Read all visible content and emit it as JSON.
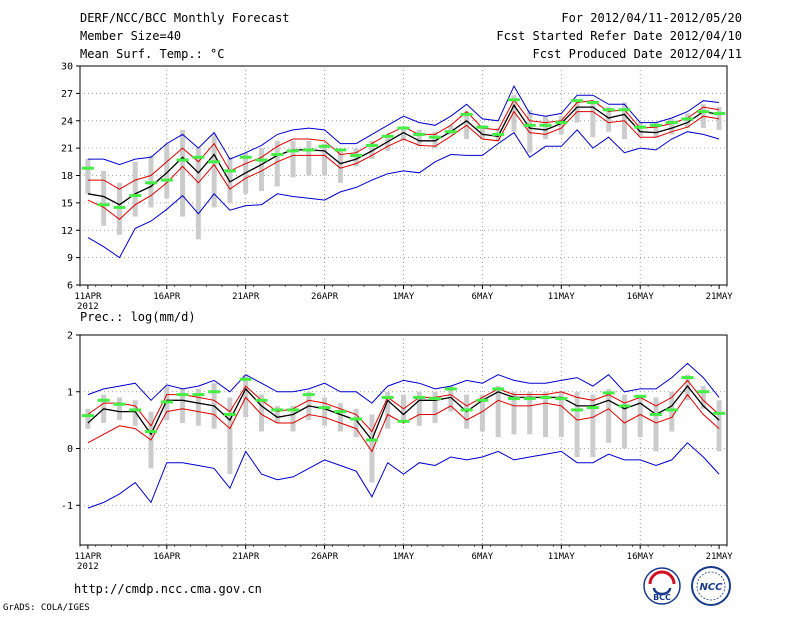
{
  "header": {
    "title": "DERF/NCC/BCC Monthly Forecast",
    "member_size": "Member Size=40",
    "variable1": "Mean Surf. Temp.: °C",
    "period": "For 2012/04/11-2012/05/20",
    "started": "Fcst Started Refer Date 2012/04/10",
    "produced": "Fcst Produced Date 2012/04/11"
  },
  "footer": {
    "url": "http://cmdp.ncc.cma.gov.cn",
    "grads": "GrADS: COLA/IGES",
    "logo_bcc": "BCC",
    "logo_ncc": "NCC"
  },
  "colors": {
    "median": "#000000",
    "upper": "#0000cc",
    "lower": "#0000cc",
    "ensemble_upper": "#dd0000",
    "ensemble_lower": "#dd0000",
    "climatology": "#44ee44",
    "range_bar": "#cccccc",
    "grid": "#888888"
  },
  "chart_data": [
    {
      "type": "line",
      "title": "Mean Surf. Temp.: °C",
      "x_ticks": [
        "11APR",
        "16APR",
        "21APR",
        "26APR",
        "1MAY",
        "6MAY",
        "11MAY",
        "16MAY",
        "21MAY"
      ],
      "x_year_label": "2012",
      "x_days": 41,
      "ylim": [
        6,
        30
      ],
      "y_ticks": [
        "6",
        "9",
        "12",
        "15",
        "18",
        "21",
        "24",
        "27",
        "30"
      ],
      "grid": true,
      "series": [
        {
          "name": "max",
          "color": "upper",
          "values": [
            19.8,
            19.8,
            19.2,
            19.8,
            20.0,
            21.5,
            22.5,
            21.0,
            22.7,
            19.8,
            20.5,
            21.3,
            22.5,
            23.0,
            23.2,
            23.0,
            21.5,
            21.5,
            22.5,
            23.5,
            24.5,
            23.8,
            23.5,
            24.5,
            25.8,
            24.2,
            24.0,
            27.8,
            24.8,
            24.5,
            24.8,
            26.8,
            26.8,
            25.8,
            25.8,
            23.8,
            23.8,
            24.3,
            25.0,
            26.2,
            26.0
          ]
        },
        {
          "name": "upper",
          "color": "ensemble_upper",
          "values": [
            17.5,
            17.5,
            16.5,
            17.5,
            18.0,
            19.5,
            21.0,
            19.5,
            21.5,
            18.5,
            19.3,
            20.0,
            21.2,
            22.0,
            22.0,
            21.8,
            20.3,
            20.5,
            21.5,
            22.5,
            23.3,
            22.5,
            22.5,
            23.5,
            25.0,
            23.2,
            23.0,
            26.3,
            24.0,
            23.8,
            24.0,
            26.0,
            26.2,
            25.0,
            25.2,
            23.2,
            23.3,
            23.7,
            24.3,
            25.5,
            25.2
          ]
        },
        {
          "name": "median",
          "color": "median",
          "values": [
            16.0,
            15.7,
            14.8,
            16.0,
            16.8,
            18.3,
            20.0,
            18.3,
            20.3,
            17.3,
            18.3,
            19.2,
            20.2,
            20.8,
            20.8,
            20.7,
            19.3,
            19.8,
            20.7,
            21.7,
            22.7,
            21.8,
            21.8,
            22.8,
            24.0,
            22.5,
            22.3,
            25.7,
            23.2,
            23.0,
            23.7,
            25.5,
            25.5,
            24.3,
            24.7,
            22.8,
            22.7,
            23.2,
            23.8,
            25.0,
            24.7
          ]
        },
        {
          "name": "lower",
          "color": "ensemble_lower",
          "values": [
            15.3,
            14.5,
            13.2,
            14.8,
            15.8,
            17.2,
            19.0,
            17.2,
            19.2,
            16.5,
            17.7,
            18.5,
            19.5,
            20.2,
            20.2,
            20.2,
            18.8,
            19.3,
            20.2,
            21.2,
            22.0,
            21.3,
            21.2,
            22.3,
            23.5,
            22.0,
            21.8,
            25.0,
            22.7,
            22.5,
            23.2,
            25.0,
            25.0,
            23.8,
            24.0,
            22.2,
            22.2,
            22.8,
            23.3,
            24.5,
            24.2
          ]
        },
        {
          "name": "min",
          "color": "lower",
          "values": [
            11.2,
            10.2,
            9.0,
            12.2,
            13.0,
            14.3,
            15.8,
            13.8,
            16.0,
            14.2,
            14.7,
            14.8,
            16.0,
            15.7,
            15.5,
            15.3,
            16.2,
            16.7,
            17.5,
            18.2,
            18.5,
            18.3,
            19.5,
            20.3,
            20.2,
            20.2,
            21.5,
            22.7,
            20.0,
            21.2,
            21.2,
            23.0,
            21.0,
            22.2,
            20.5,
            21.0,
            20.8,
            22.0,
            22.8,
            22.5,
            22.0
          ]
        },
        {
          "name": "climatology",
          "color": "climatology",
          "values": [
            18.8,
            14.8,
            14.5,
            15.8,
            17.2,
            17.5,
            19.7,
            20.0,
            19.5,
            18.5,
            20.0,
            19.7,
            20.3,
            20.7,
            20.8,
            21.2,
            20.8,
            20.2,
            21.3,
            22.3,
            23.2,
            22.5,
            22.2,
            22.8,
            24.7,
            23.3,
            22.5,
            26.3,
            23.5,
            23.5,
            23.8,
            26.2,
            26.0,
            25.2,
            25.2,
            23.3,
            23.5,
            23.8,
            24.2,
            25.0,
            24.8
          ]
        }
      ],
      "bars": {
        "low": [
          16.0,
          12.5,
          11.5,
          13.5,
          14.5,
          15.5,
          13.5,
          11.0,
          14.5,
          15.0,
          16.0,
          16.3,
          16.8,
          17.8,
          18.0,
          18.0,
          17.2,
          19.0,
          19.8,
          20.7,
          21.8,
          21.2,
          21.0,
          22.5,
          22.0,
          22.0,
          21.8,
          22.8,
          20.5,
          22.0,
          22.5,
          23.8,
          22.2,
          22.8,
          22.0,
          22.3,
          22.2,
          22.5,
          23.2,
          23.2,
          23.0
        ],
        "high": [
          19.8,
          18.5,
          17.2,
          19.5,
          20.2,
          21.5,
          23.0,
          21.0,
          22.5,
          20.0,
          20.5,
          21.0,
          21.8,
          21.8,
          21.8,
          21.5,
          20.8,
          21.0,
          21.8,
          22.5,
          23.3,
          23.0,
          22.8,
          23.5,
          25.0,
          23.5,
          23.2,
          26.8,
          25.2,
          24.5,
          24.5,
          26.0,
          26.0,
          25.5,
          26.0,
          23.8,
          23.8,
          24.2,
          24.8,
          25.8,
          25.5
        ]
      }
    },
    {
      "type": "line",
      "title": "Prec.: log(mm/d)",
      "x_ticks": [
        "11APR",
        "16APR",
        "21APR",
        "26APR",
        "1MAY",
        "6MAY",
        "11MAY",
        "16MAY",
        "21MAY"
      ],
      "x_year_label": "2012",
      "x_days": 41,
      "ylim": [
        -1.7,
        2.0
      ],
      "y_ticks": [
        "-1",
        "0",
        "1",
        "2"
      ],
      "y_tick_values": [
        -1,
        0,
        1,
        2
      ],
      "grid": true,
      "series": [
        {
          "name": "max",
          "color": "upper",
          "values": [
            0.95,
            1.05,
            1.1,
            1.15,
            0.85,
            1.12,
            1.05,
            1.1,
            1.2,
            1.0,
            1.3,
            1.15,
            1.0,
            1.0,
            1.05,
            1.15,
            1.0,
            1.0,
            0.8,
            1.1,
            1.2,
            1.15,
            1.05,
            1.1,
            1.2,
            1.15,
            1.3,
            1.2,
            1.15,
            1.15,
            1.2,
            1.25,
            1.1,
            1.3,
            1.0,
            1.05,
            1.05,
            1.25,
            1.5,
            1.25,
            0.9
          ]
        },
        {
          "name": "upper",
          "color": "ensemble_upper",
          "values": [
            0.6,
            0.8,
            0.8,
            0.75,
            0.4,
            0.95,
            0.95,
            0.9,
            0.85,
            0.65,
            1.1,
            0.85,
            0.65,
            0.7,
            0.85,
            0.8,
            0.7,
            0.6,
            0.3,
            0.9,
            0.7,
            0.9,
            0.9,
            0.95,
            0.75,
            0.9,
            1.05,
            0.95,
            0.95,
            0.95,
            1.0,
            0.9,
            0.85,
            0.95,
            0.8,
            0.9,
            0.75,
            0.9,
            1.2,
            0.85,
            0.6
          ]
        },
        {
          "name": "median",
          "color": "median",
          "values": [
            0.45,
            0.7,
            0.65,
            0.65,
            0.25,
            0.85,
            0.85,
            0.8,
            0.75,
            0.5,
            1.05,
            0.75,
            0.55,
            0.6,
            0.75,
            0.7,
            0.6,
            0.5,
            0.15,
            0.85,
            0.6,
            0.85,
            0.85,
            0.9,
            0.65,
            0.85,
            1.0,
            0.9,
            0.9,
            0.9,
            0.9,
            0.75,
            0.75,
            0.85,
            0.7,
            0.8,
            0.6,
            0.75,
            1.1,
            0.75,
            0.5
          ]
        },
        {
          "name": "lower",
          "color": "ensemble_lower",
          "values": [
            0.1,
            0.25,
            0.4,
            0.35,
            0.15,
            0.65,
            0.7,
            0.65,
            0.6,
            0.35,
            0.9,
            0.6,
            0.45,
            0.45,
            0.6,
            0.55,
            0.45,
            0.35,
            -0.05,
            0.6,
            0.45,
            0.6,
            0.6,
            0.75,
            0.5,
            0.65,
            0.85,
            0.75,
            0.75,
            0.8,
            0.75,
            0.5,
            0.55,
            0.7,
            0.45,
            0.6,
            0.45,
            0.55,
            0.95,
            0.6,
            0.35
          ]
        },
        {
          "name": "min",
          "color": "lower",
          "values": [
            -1.05,
            -0.95,
            -0.8,
            -0.6,
            -0.95,
            -0.25,
            -0.25,
            -0.3,
            -0.35,
            -0.7,
            -0.05,
            -0.45,
            -0.55,
            -0.5,
            -0.35,
            -0.2,
            -0.3,
            -0.4,
            -0.85,
            -0.25,
            -0.45,
            -0.25,
            -0.3,
            -0.15,
            -0.2,
            -0.15,
            -0.05,
            -0.2,
            -0.15,
            -0.1,
            -0.05,
            -0.25,
            -0.25,
            -0.1,
            -0.2,
            -0.2,
            -0.3,
            -0.2,
            0.1,
            -0.15,
            -0.45
          ]
        },
        {
          "name": "climatology",
          "color": "climatology",
          "values": [
            0.58,
            0.85,
            0.78,
            0.68,
            0.3,
            0.82,
            0.95,
            0.95,
            1.0,
            0.6,
            1.22,
            0.85,
            0.68,
            0.68,
            0.95,
            0.72,
            0.65,
            0.52,
            0.15,
            0.9,
            0.48,
            0.9,
            0.88,
            1.05,
            0.68,
            0.85,
            1.05,
            0.88,
            0.88,
            0.9,
            0.88,
            0.68,
            0.72,
            0.98,
            0.75,
            0.92,
            0.6,
            0.68,
            1.25,
            1.0,
            0.62
          ]
        }
      ],
      "bars": {
        "low": [
          0.35,
          0.45,
          0.5,
          0.4,
          -0.35,
          0.5,
          0.45,
          0.4,
          0.35,
          -0.45,
          0.55,
          0.3,
          0.45,
          0.3,
          0.5,
          0.4,
          0.3,
          0.2,
          -0.6,
          0.35,
          0.5,
          0.4,
          0.45,
          0.65,
          0.35,
          0.3,
          0.2,
          0.25,
          0.25,
          0.2,
          0.2,
          -0.15,
          -0.15,
          0.1,
          0.0,
          0.2,
          -0.05,
          0.3,
          0.85,
          0.7,
          -0.05
        ],
        "high": [
          0.7,
          0.95,
          0.9,
          0.85,
          0.65,
          1.1,
          1.05,
          1.05,
          1.15,
          0.9,
          1.3,
          0.95,
          0.75,
          0.75,
          1.0,
          0.9,
          0.8,
          0.7,
          0.6,
          1.0,
          0.95,
          1.0,
          1.0,
          1.1,
          0.95,
          0.95,
          1.1,
          1.0,
          1.0,
          1.0,
          1.0,
          1.0,
          0.95,
          1.05,
          0.95,
          0.95,
          0.9,
          1.0,
          1.3,
          1.1,
          0.85
        ]
      }
    }
  ]
}
